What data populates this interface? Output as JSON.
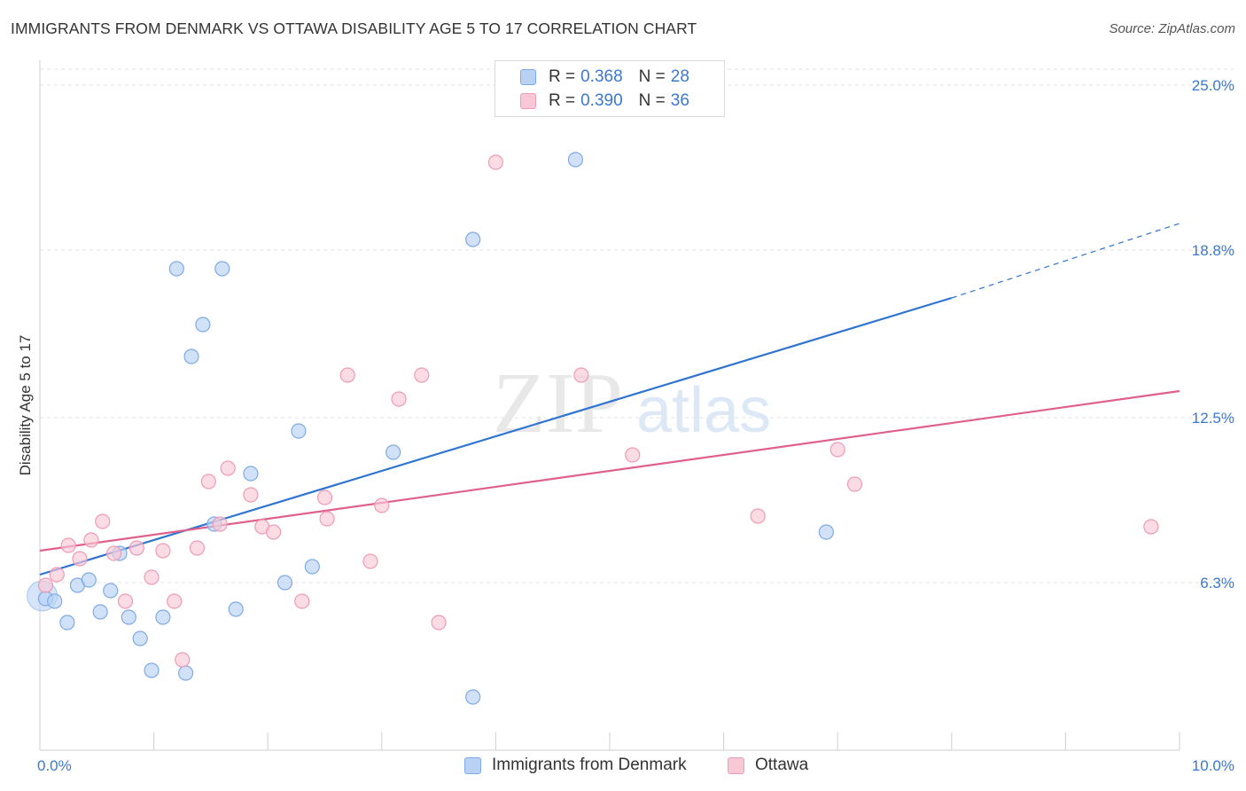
{
  "title": "IMMIGRANTS FROM DENMARK VS OTTAWA DISABILITY AGE 5 TO 17 CORRELATION CHART",
  "source": "Source: ZipAtlas.com",
  "watermark": {
    "zip": "ZIP",
    "atlas": "atlas"
  },
  "legend": {
    "r_label": "R =",
    "n_label": "N =",
    "rows": [
      {
        "r": "0.368",
        "n": "28"
      },
      {
        "r": "0.390",
        "n": "36"
      }
    ]
  },
  "colors": {
    "blue_fill": "#b9d2f4",
    "blue_stroke": "#7eaae6",
    "blue_line": "#2f74d0",
    "pink_fill": "#f9c8d6",
    "pink_stroke": "#ef9bb5",
    "pink_line": "#e0608c",
    "tick_text": "#3b78d0",
    "grid": "#e0e0e0"
  },
  "chart_data": {
    "type": "scatter",
    "title": "IMMIGRANTS FROM DENMARK VS OTTAWA DISABILITY AGE 5 TO 17 CORRELATION CHART",
    "xlabel": "",
    "ylabel": "Disability Age 5 to 17",
    "xlim": [
      0,
      10
    ],
    "ylim": [
      0,
      25.6
    ],
    "x_tick_labels": [
      "0.0%",
      "10.0%"
    ],
    "y_ticks": [
      6.3,
      12.5,
      18.8,
      25.0
    ],
    "y_tick_labels": [
      "6.3%",
      "12.5%",
      "18.8%",
      "25.0%"
    ],
    "grid": "horizontal dashed",
    "legend_position": "top-center",
    "series": [
      {
        "name": "Immigrants from Denmark",
        "color": "#7eaae6",
        "points": [
          [
            0.05,
            5.7
          ],
          [
            0.13,
            5.6
          ],
          [
            0.24,
            4.8
          ],
          [
            0.33,
            6.2
          ],
          [
            0.43,
            6.4
          ],
          [
            0.53,
            5.2
          ],
          [
            0.62,
            6.0
          ],
          [
            0.7,
            7.4
          ],
          [
            0.78,
            5.0
          ],
          [
            0.88,
            4.2
          ],
          [
            0.98,
            3.0
          ],
          [
            1.08,
            5.0
          ],
          [
            1.2,
            18.1
          ],
          [
            1.28,
            2.9
          ],
          [
            1.33,
            14.8
          ],
          [
            1.43,
            16.0
          ],
          [
            1.53,
            8.5
          ],
          [
            1.6,
            18.1
          ],
          [
            1.72,
            5.3
          ],
          [
            1.85,
            10.4
          ],
          [
            2.15,
            6.3
          ],
          [
            2.27,
            12.0
          ],
          [
            2.39,
            6.9
          ],
          [
            3.1,
            11.2
          ],
          [
            3.8,
            2.0
          ],
          [
            3.8,
            19.2
          ],
          [
            4.7,
            22.2
          ],
          [
            6.9,
            8.2
          ]
        ],
        "trend": {
          "x": [
            0.0,
            8.0
          ],
          "y": [
            6.6,
            17.0
          ],
          "dashed_to": [
            10.0,
            19.8
          ]
        }
      },
      {
        "name": "Ottawa",
        "color": "#ef9bb5",
        "points": [
          [
            0.05,
            6.2
          ],
          [
            0.15,
            6.6
          ],
          [
            0.25,
            7.7
          ],
          [
            0.35,
            7.2
          ],
          [
            0.45,
            7.9
          ],
          [
            0.55,
            8.6
          ],
          [
            0.65,
            7.4
          ],
          [
            0.75,
            5.6
          ],
          [
            0.85,
            7.6
          ],
          [
            0.98,
            6.5
          ],
          [
            1.08,
            7.5
          ],
          [
            1.18,
            5.6
          ],
          [
            1.25,
            3.4
          ],
          [
            1.38,
            7.6
          ],
          [
            1.48,
            10.1
          ],
          [
            1.58,
            8.5
          ],
          [
            1.65,
            10.6
          ],
          [
            1.85,
            9.6
          ],
          [
            1.95,
            8.4
          ],
          [
            2.05,
            8.2
          ],
          [
            2.3,
            5.6
          ],
          [
            2.5,
            9.5
          ],
          [
            2.52,
            8.7
          ],
          [
            2.7,
            14.1
          ],
          [
            2.9,
            7.1
          ],
          [
            3.0,
            9.2
          ],
          [
            3.15,
            13.2
          ],
          [
            3.35,
            14.1
          ],
          [
            3.5,
            4.8
          ],
          [
            4.0,
            22.1
          ],
          [
            4.75,
            14.1
          ],
          [
            5.2,
            11.1
          ],
          [
            6.3,
            8.8
          ],
          [
            7.0,
            11.3
          ],
          [
            7.15,
            10.0
          ],
          [
            9.75,
            8.4
          ]
        ],
        "trend": {
          "x": [
            0.0,
            10.0
          ],
          "y": [
            7.5,
            13.5
          ]
        }
      }
    ]
  }
}
